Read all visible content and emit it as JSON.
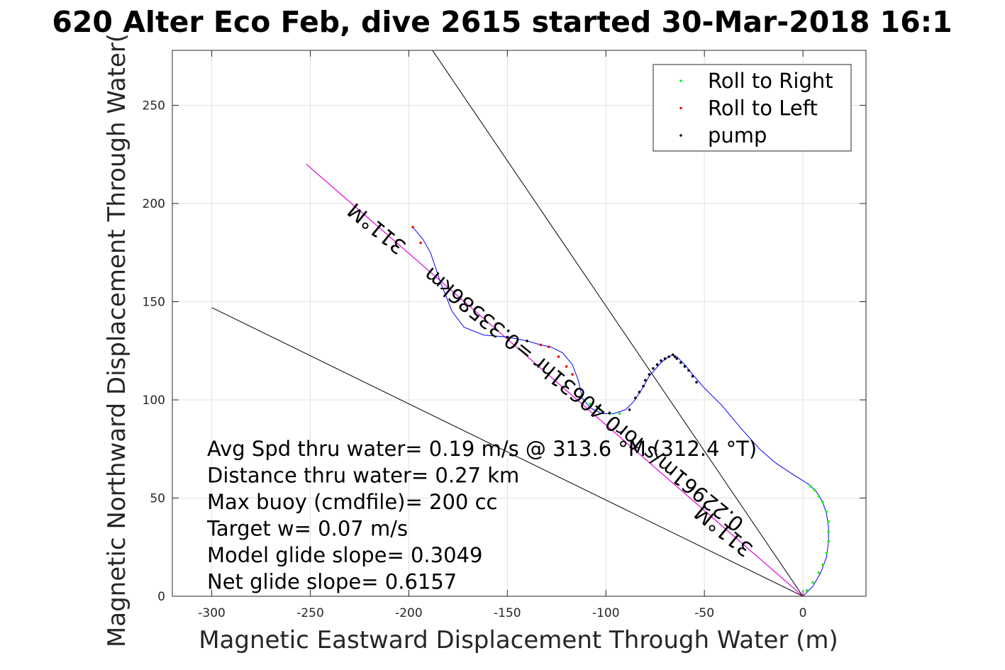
{
  "chart_data": {
    "type": "scatter",
    "title": "620 Alter Eco Feb, dive 2615 started 30-Mar-2018 16:1",
    "xlabel": "Magnetic Eastward Displacement Through Water (m)",
    "ylabel": "Magnetic Northward Displacement Through Water(",
    "xlim": [
      -320,
      32
    ],
    "ylim": [
      0,
      278
    ],
    "xticks": [
      -300,
      -250,
      -200,
      -150,
      -100,
      -50,
      0
    ],
    "yticks": [
      0,
      50,
      100,
      150,
      200,
      250
    ],
    "grid": true,
    "legend_position": "top-right",
    "legend": [
      {
        "label": "Roll to Right",
        "color": "#00ff00"
      },
      {
        "label": "Roll to Left",
        "color": "#ff0000"
      },
      {
        "label": "pump",
        "color": "#000000"
      }
    ],
    "track": {
      "color": "#0000ff",
      "points": [
        [
          0,
          0
        ],
        [
          5,
          5
        ],
        [
          9,
          12
        ],
        [
          12,
          20
        ],
        [
          13,
          28
        ],
        [
          13,
          35
        ],
        [
          12,
          42
        ],
        [
          10,
          48
        ],
        [
          7,
          53
        ],
        [
          3,
          57
        ],
        [
          -5,
          62
        ],
        [
          -14,
          68
        ],
        [
          -22,
          75
        ],
        [
          -31,
          85
        ],
        [
          -41,
          97
        ],
        [
          -50,
          106
        ],
        [
          -56,
          113
        ],
        [
          -60,
          118
        ],
        [
          -64,
          122
        ],
        [
          -66,
          123
        ],
        [
          -68,
          122
        ],
        [
          -72,
          119
        ],
        [
          -78,
          112
        ],
        [
          -82,
          105
        ],
        [
          -86,
          99
        ],
        [
          -90,
          95
        ],
        [
          -96,
          93
        ],
        [
          -102,
          93
        ],
        [
          -108,
          96
        ],
        [
          -112,
          101
        ],
        [
          -114,
          110
        ],
        [
          -117,
          118
        ],
        [
          -122,
          124
        ],
        [
          -128,
          127
        ],
        [
          -133,
          128
        ],
        [
          -140,
          130
        ],
        [
          -150,
          132
        ],
        [
          -162,
          133
        ],
        [
          -172,
          137
        ],
        [
          -178,
          145
        ],
        [
          -184,
          160
        ],
        [
          -189,
          175
        ],
        [
          -193,
          182
        ],
        [
          -198,
          188
        ]
      ]
    },
    "roll_right_points": [
      [
        2,
        3
      ],
      [
        5,
        7
      ],
      [
        8,
        12
      ],
      [
        10,
        16
      ],
      [
        12,
        22
      ],
      [
        13,
        28
      ],
      [
        13,
        33
      ],
      [
        13,
        38
      ],
      [
        12,
        43
      ],
      [
        10,
        48
      ],
      [
        8,
        51
      ],
      [
        6,
        54
      ],
      [
        4,
        56
      ],
      [
        -108,
        98
      ],
      [
        -103,
        95
      ],
      [
        -98,
        93
      ],
      [
        -93,
        93
      ]
    ],
    "roll_left_points": [
      [
        -198,
        188
      ],
      [
        -194,
        180
      ],
      [
        -133,
        128
      ],
      [
        -129,
        127
      ],
      [
        -124,
        122
      ],
      [
        -120,
        117
      ],
      [
        -117,
        113
      ],
      [
        0,
        0
      ]
    ],
    "pump_points": [
      [
        -88,
        95
      ],
      [
        -85,
        101
      ],
      [
        -83,
        104
      ],
      [
        -81,
        107
      ],
      [
        -80,
        110
      ],
      [
        -78,
        113
      ],
      [
        -76,
        116
      ],
      [
        -74,
        118
      ],
      [
        -72,
        120
      ],
      [
        -70,
        121
      ],
      [
        -68,
        122
      ],
      [
        -66,
        123
      ],
      [
        -65,
        122
      ],
      [
        -64,
        121
      ],
      [
        -62,
        119
      ],
      [
        -60,
        117
      ],
      [
        -58,
        115
      ],
      [
        -56,
        112
      ],
      [
        -54,
        109
      ],
      [
        -150,
        132
      ],
      [
        -140,
        130
      ]
    ],
    "lines": [
      {
        "name": "glide-line-steep",
        "color": "#000000",
        "points": [
          [
            0,
            0
          ],
          [
            -188,
            278
          ]
        ]
      },
      {
        "name": "glide-line-shallow",
        "color": "#000000",
        "points": [
          [
            0,
            0
          ],
          [
            -300,
            147
          ]
        ]
      },
      {
        "name": "heading-line-black",
        "color": "#000000",
        "points": [
          [
            0,
            0
          ],
          [
            -252,
            220
          ]
        ]
      },
      {
        "name": "heading-line-magenta",
        "color": "#ff00ff",
        "points": [
          [
            0,
            0
          ],
          [
            -252,
            220
          ]
        ]
      }
    ],
    "line_labels": [
      {
        "text": "311°M",
        "x": -214,
        "y": 190,
        "angle": 219.1
      },
      {
        "text": "0.22961m/s for0.40631hr =0.33586km",
        "x": -109,
        "y": 103,
        "angle": 219.1
      },
      {
        "text": "311°M",
        "x": -38,
        "y": 36,
        "angle": 219.1
      }
    ],
    "annotations": [
      "Avg Spd thru water=  0.19 m/s @ 313.6 °M (312.4 °T)",
      "Distance thru water=  0.27 km",
      "Max buoy (cmdfile)= 200 cc",
      "Target w= 0.07 m/s",
      "Model glide slope= 0.3049",
      "Net glide slope= 0.6157"
    ]
  }
}
